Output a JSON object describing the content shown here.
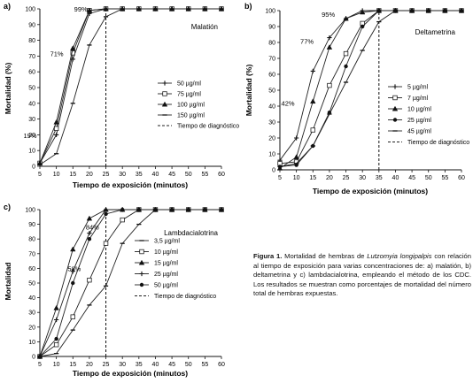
{
  "chart_data": [
    {
      "type": "line",
      "panel_label": "a)",
      "title": "Malatión",
      "xlabel": "Tiempo de exposición (minutos)",
      "ylabel": "Mortalidad (%)",
      "x": [
        5,
        10,
        15,
        20,
        25,
        30,
        35,
        40,
        45,
        50,
        55,
        60
      ],
      "xlim": [
        5,
        60
      ],
      "ylim": [
        0,
        100
      ],
      "yticks": [
        0,
        10,
        20,
        30,
        40,
        50,
        60,
        70,
        80,
        90,
        100
      ],
      "grid": false,
      "legend_position": "right",
      "series": [
        {
          "name": "50 µg/ml",
          "marker": "plus",
          "values": [
            2,
            20,
            68,
            97,
            100,
            100,
            100,
            100,
            100,
            100,
            100,
            100
          ]
        },
        {
          "name": "75 µg/ml",
          "marker": "square",
          "values": [
            2,
            24,
            72,
            99,
            100,
            100,
            100,
            100,
            100,
            100,
            100,
            100
          ]
        },
        {
          "name": "100 µg/ml",
          "marker": "triangle",
          "values": [
            2,
            28,
            75,
            99,
            100,
            100,
            100,
            100,
            100,
            100,
            100,
            100
          ]
        },
        {
          "name": "150 µg/ml",
          "marker": "dash",
          "values": [
            1,
            8,
            40,
            77,
            95,
            100,
            100,
            100,
            100,
            100,
            100,
            100
          ]
        }
      ],
      "diagnostic_time": 25,
      "diagnostic_label": "Tiempo de diagnóstico",
      "annotations": [
        {
          "text": "19%",
          "x": 5,
          "y": 19
        },
        {
          "text": "71%",
          "x": 12,
          "y": 71
        },
        {
          "text": "99%",
          "x": 19,
          "y": 100
        }
      ]
    },
    {
      "type": "line",
      "panel_label": "b)",
      "title": "Deltametrina",
      "xlabel": "Tiempo de exposición (minutos)",
      "ylabel": "Mortalidad (%)",
      "x": [
        5,
        10,
        15,
        20,
        25,
        30,
        35,
        40,
        45,
        50,
        55,
        60
      ],
      "xlim": [
        5,
        60
      ],
      "ylim": [
        0,
        100
      ],
      "yticks": [
        0,
        10,
        20,
        30,
        40,
        50,
        60,
        70,
        80,
        90,
        100
      ],
      "grid": false,
      "legend_position": "right",
      "series": [
        {
          "name": "5 µg/ml",
          "marker": "plus",
          "values": [
            6,
            20,
            62,
            83,
            95,
            100,
            100,
            100,
            100,
            100,
            100,
            100
          ]
        },
        {
          "name": "7 µg/ml",
          "marker": "square",
          "values": [
            4,
            5,
            25,
            53,
            73,
            92,
            100,
            100,
            100,
            100,
            100,
            100
          ]
        },
        {
          "name": "10 µg/ml",
          "marker": "triangle",
          "values": [
            1,
            8,
            43,
            77,
            95,
            99,
            100,
            100,
            100,
            100,
            100,
            100
          ]
        },
        {
          "name": "25 µg/ml",
          "marker": "circle",
          "values": [
            2,
            3,
            15,
            36,
            65,
            90,
            100,
            100,
            100,
            100,
            100,
            100
          ]
        },
        {
          "name": "45 µg/ml",
          "marker": "dash",
          "values": [
            2,
            4,
            15,
            35,
            55,
            75,
            93,
            100,
            100,
            100,
            100,
            100
          ]
        }
      ],
      "diagnostic_time": 35,
      "diagnostic_label": "Tiempo de diagnóstico",
      "annotations": [
        {
          "text": "42%",
          "x": 8.5,
          "y": 42
        },
        {
          "text": "77%",
          "x": 14,
          "y": 77
        },
        {
          "text": "95%",
          "x": 21,
          "y": 95
        }
      ]
    },
    {
      "type": "line",
      "panel_label": "c)",
      "title": "Lambdacialotrina",
      "xlabel": "Tiempo de exposición (minutos)",
      "ylabel": "Mortalidad",
      "x": [
        5,
        10,
        15,
        20,
        25,
        30,
        35,
        40,
        45,
        50,
        55,
        60
      ],
      "xlim": [
        5,
        60
      ],
      "ylim": [
        0,
        100
      ],
      "yticks": [
        0,
        10,
        20,
        30,
        40,
        50,
        60,
        70,
        80,
        90,
        100
      ],
      "grid": false,
      "legend_position": "right",
      "series": [
        {
          "name": "3,5 µg/ml",
          "marker": "dash",
          "values": [
            0,
            2,
            18,
            35,
            48,
            77,
            90,
            100,
            100,
            100,
            100,
            100
          ]
        },
        {
          "name": "10 µg/ml",
          "marker": "square",
          "values": [
            0,
            8,
            27,
            52,
            77,
            93,
            100,
            100,
            100,
            100,
            100,
            100
          ]
        },
        {
          "name": "15 µg/ml",
          "marker": "triangle",
          "values": [
            0,
            33,
            73,
            94,
            100,
            100,
            100,
            100,
            100,
            100,
            100,
            100
          ]
        },
        {
          "name": "25 µg/ml",
          "marker": "plus",
          "values": [
            0,
            25,
            58,
            84,
            100,
            100,
            100,
            100,
            100,
            100,
            100,
            100
          ]
        },
        {
          "name": "50 µg/ml",
          "marker": "circle",
          "values": [
            0,
            12,
            50,
            80,
            97,
            100,
            100,
            100,
            100,
            100,
            100,
            100
          ]
        }
      ],
      "diagnostic_time": 25,
      "diagnostic_label": "Tiempo de diagnóstico",
      "annotations": [
        {
          "text": "58%",
          "x": 16.5,
          "y": 58
        },
        {
          "text": "84%",
          "x": 22,
          "y": 84
        }
      ]
    }
  ],
  "caption": {
    "label": "Figura 1.",
    "text_before": " Mortalidad de hembras de ",
    "species": "Lutzomyia longipalpis",
    "text_after": " con relación al tiempo de exposición para varias concentraciones de: a) malatión, b) deltametrina y c) lambdacialotrina, empleando el método de los CDC. Los resultados se muestran como porcentajes de mortalidad del número total de hembras expuestas."
  }
}
